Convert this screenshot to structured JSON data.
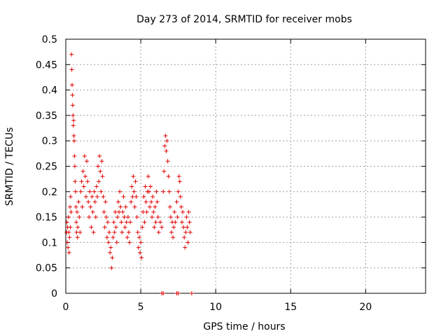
{
  "chart_data": {
    "type": "scatter",
    "title": "Day 273 of 2014, SRMTID for receiver mobs",
    "xlabel": "GPS time / hours",
    "ylabel": "SRMTID / TECUs",
    "xlim": [
      0,
      24
    ],
    "ylim": [
      0,
      0.5
    ],
    "grid": true,
    "marker": "+",
    "color": "#e00000",
    "x_ticks": [
      0,
      5,
      10,
      15,
      20
    ],
    "x_tick_labels": [
      "0",
      "5",
      "10",
      "15",
      "20"
    ],
    "y_ticks": [
      0,
      0.05,
      0.1,
      0.15,
      0.2,
      0.25,
      0.3,
      0.35,
      0.4,
      0.45,
      0.5
    ],
    "y_tick_labels": [
      "0",
      "0.05",
      "0.1",
      "0.15",
      "0.2",
      "0.25",
      "0.3",
      "0.35",
      "0.4",
      "0.45",
      "0.5"
    ],
    "series": [
      {
        "name": "SRMTID",
        "points": [
          [
            0.05,
            0.12
          ],
          [
            0.08,
            0.14
          ],
          [
            0.1,
            0.1
          ],
          [
            0.12,
            0.13
          ],
          [
            0.15,
            0.09
          ],
          [
            0.18,
            0.15
          ],
          [
            0.2,
            0.12
          ],
          [
            0.22,
            0.08
          ],
          [
            0.25,
            0.11
          ],
          [
            0.28,
            0.17
          ],
          [
            0.3,
            0.13
          ],
          [
            0.32,
            0.19
          ],
          [
            0.35,
            0.16
          ],
          [
            0.38,
            0.47
          ],
          [
            0.4,
            0.44
          ],
          [
            0.42,
            0.41
          ],
          [
            0.44,
            0.39
          ],
          [
            0.46,
            0.37
          ],
          [
            0.48,
            0.35
          ],
          [
            0.5,
            0.33
          ],
          [
            0.52,
            0.34
          ],
          [
            0.54,
            0.31
          ],
          [
            0.56,
            0.3
          ],
          [
            0.58,
            0.27
          ],
          [
            0.6,
            0.25
          ],
          [
            0.62,
            0.22
          ],
          [
            0.65,
            0.2
          ],
          [
            0.68,
            0.17
          ],
          [
            0.7,
            0.14
          ],
          [
            0.72,
            0.12
          ],
          [
            0.75,
            0.16
          ],
          [
            0.78,
            0.11
          ],
          [
            0.8,
            0.13
          ],
          [
            0.85,
            0.18
          ],
          [
            0.9,
            0.15
          ],
          [
            0.95,
            0.12
          ],
          [
            1.0,
            0.2
          ],
          [
            1.05,
            0.22
          ],
          [
            1.1,
            0.17
          ],
          [
            1.15,
            0.24
          ],
          [
            1.2,
            0.21
          ],
          [
            1.25,
            0.27
          ],
          [
            1.3,
            0.23
          ],
          [
            1.35,
            0.19
          ],
          [
            1.4,
            0.26
          ],
          [
            1.45,
            0.22
          ],
          [
            1.5,
            0.18
          ],
          [
            1.55,
            0.15
          ],
          [
            1.6,
            0.2
          ],
          [
            1.65,
            0.17
          ],
          [
            1.7,
            0.13
          ],
          [
            1.75,
            0.19
          ],
          [
            1.8,
            0.16
          ],
          [
            1.85,
            0.12
          ],
          [
            1.9,
            0.2
          ],
          [
            1.95,
            0.18
          ],
          [
            2.0,
            0.15
          ],
          [
            2.05,
            0.21
          ],
          [
            2.1,
            0.19
          ],
          [
            2.15,
            0.25
          ],
          [
            2.2,
            0.22
          ],
          [
            2.25,
            0.27
          ],
          [
            2.3,
            0.24
          ],
          [
            2.35,
            0.2
          ],
          [
            2.4,
            0.26
          ],
          [
            2.45,
            0.23
          ],
          [
            2.5,
            0.19
          ],
          [
            2.55,
            0.16
          ],
          [
            2.6,
            0.13
          ],
          [
            2.65,
            0.18
          ],
          [
            2.7,
            0.15
          ],
          [
            2.75,
            0.11
          ],
          [
            2.8,
            0.14
          ],
          [
            2.85,
            0.1
          ],
          [
            2.9,
            0.12
          ],
          [
            2.95,
            0.08
          ],
          [
            3.0,
            0.09
          ],
          [
            3.05,
            0.05
          ],
          [
            3.1,
            0.07
          ],
          [
            3.15,
            0.11
          ],
          [
            3.2,
            0.14
          ],
          [
            3.25,
            0.12
          ],
          [
            3.3,
            0.16
          ],
          [
            3.35,
            0.13
          ],
          [
            3.4,
            0.1
          ],
          [
            3.45,
            0.15
          ],
          [
            3.5,
            0.18
          ],
          [
            3.55,
            0.16
          ],
          [
            3.6,
            0.2
          ],
          [
            3.65,
            0.17
          ],
          [
            3.7,
            0.14
          ],
          [
            3.75,
            0.12
          ],
          [
            3.8,
            0.16
          ],
          [
            3.85,
            0.19
          ],
          [
            3.9,
            0.15
          ],
          [
            3.95,
            0.13
          ],
          [
            4.0,
            0.17
          ],
          [
            4.05,
            0.14
          ],
          [
            4.1,
            0.11
          ],
          [
            4.15,
            0.15
          ],
          [
            4.2,
            0.12
          ],
          [
            4.25,
            0.1
          ],
          [
            4.3,
            0.14
          ],
          [
            4.35,
            0.18
          ],
          [
            4.4,
            0.21
          ],
          [
            4.45,
            0.19
          ],
          [
            4.5,
            0.23
          ],
          [
            4.55,
            0.2
          ],
          [
            4.6,
            0.17
          ],
          [
            4.65,
            0.22
          ],
          [
            4.7,
            0.19
          ],
          [
            4.75,
            0.15
          ],
          [
            4.8,
            0.12
          ],
          [
            4.85,
            0.09
          ],
          [
            4.9,
            0.11
          ],
          [
            4.95,
            0.08
          ],
          [
            5.0,
            0.1
          ],
          [
            5.05,
            0.07
          ],
          [
            5.1,
            0.13
          ],
          [
            5.15,
            0.16
          ],
          [
            5.2,
            0.19
          ],
          [
            5.25,
            0.14
          ],
          [
            5.3,
            0.21
          ],
          [
            5.35,
            0.18
          ],
          [
            5.4,
            0.16
          ],
          [
            5.45,
            0.2
          ],
          [
            5.5,
            0.23
          ],
          [
            5.55,
            0.2
          ],
          [
            5.6,
            0.17
          ],
          [
            5.65,
            0.21
          ],
          [
            5.7,
            0.18
          ],
          [
            5.75,
            0.15
          ],
          [
            5.8,
            0.19
          ],
          [
            5.85,
            0.16
          ],
          [
            5.9,
            0.13
          ],
          [
            5.95,
            0.17
          ],
          [
            6.0,
            0.14
          ],
          [
            6.05,
            0.2
          ],
          [
            6.1,
            0.18
          ],
          [
            6.15,
            0.15
          ],
          [
            6.2,
            0.12
          ],
          [
            6.3,
            0.14
          ],
          [
            6.4,
            0.13
          ],
          [
            6.5,
            0.2
          ],
          [
            6.55,
            0.24
          ],
          [
            6.6,
            0.29
          ],
          [
            6.65,
            0.31
          ],
          [
            6.7,
            0.28
          ],
          [
            6.75,
            0.3
          ],
          [
            6.8,
            0.26
          ],
          [
            6.85,
            0.23
          ],
          [
            6.9,
            0.2
          ],
          [
            6.95,
            0.17
          ],
          [
            7.0,
            0.15
          ],
          [
            7.05,
            0.12
          ],
          [
            7.1,
            0.14
          ],
          [
            7.15,
            0.11
          ],
          [
            7.2,
            0.13
          ],
          [
            7.25,
            0.16
          ],
          [
            7.3,
            0.14
          ],
          [
            7.4,
            0.18
          ],
          [
            7.45,
            0.15
          ],
          [
            7.5,
            0.2
          ],
          [
            7.55,
            0.23
          ],
          [
            7.6,
            0.22
          ],
          [
            7.65,
            0.19
          ],
          [
            7.7,
            0.17
          ],
          [
            7.75,
            0.14
          ],
          [
            7.8,
            0.16
          ],
          [
            7.85,
            0.13
          ],
          [
            7.9,
            0.11
          ],
          [
            7.95,
            0.09
          ],
          [
            8.0,
            0.12
          ],
          [
            8.05,
            0.15
          ],
          [
            8.1,
            0.13
          ],
          [
            8.15,
            0.1
          ],
          [
            8.2,
            0.16
          ],
          [
            8.25,
            0.14
          ],
          [
            8.3,
            0.12
          ]
        ]
      }
    ],
    "zero_points": [
      6.4,
      6.5,
      7.4,
      7.5,
      8.4
    ]
  }
}
